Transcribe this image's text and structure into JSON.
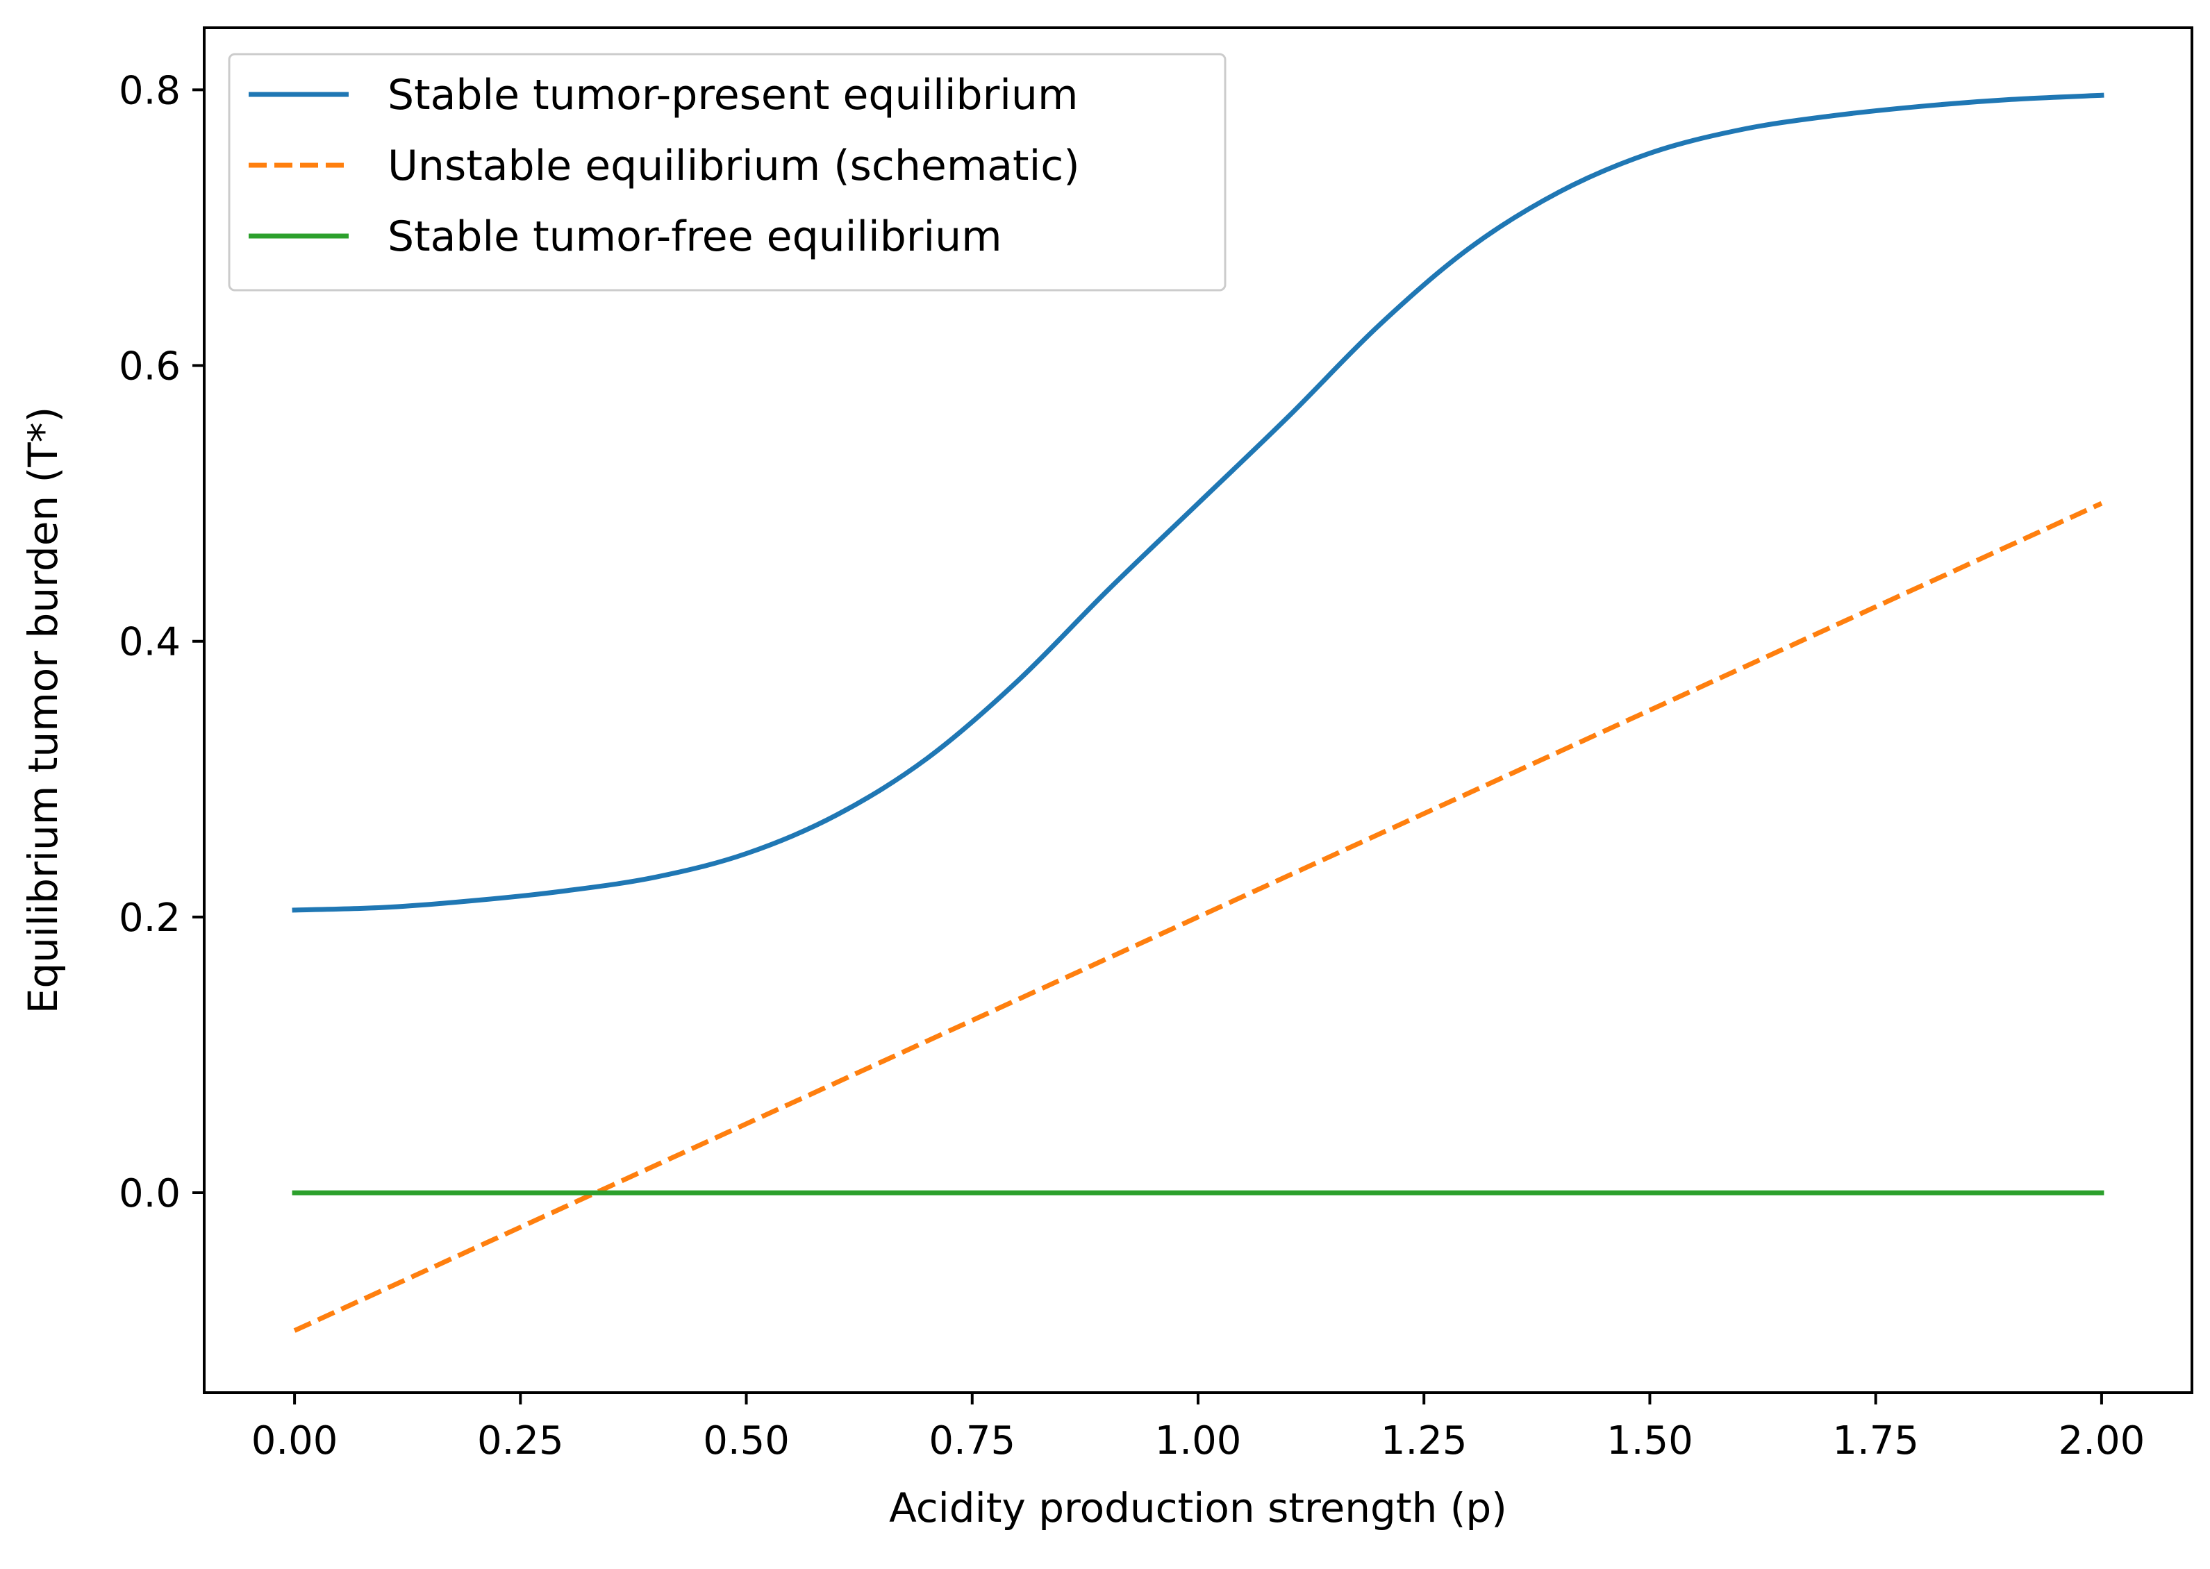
{
  "chart_data": {
    "type": "line",
    "title": "",
    "xlabel": "Acidity production strength (p)",
    "ylabel": "Equilibrium tumor burden (T*)",
    "xlim": [
      -0.1,
      2.1
    ],
    "ylim": [
      -0.145,
      0.845
    ],
    "x_ticks": [
      0.0,
      0.25,
      0.5,
      0.75,
      1.0,
      1.25,
      1.5,
      1.75,
      2.0
    ],
    "x_tick_labels": [
      "0.00",
      "0.25",
      "0.50",
      "0.75",
      "1.00",
      "1.25",
      "1.50",
      "1.75",
      "2.00"
    ],
    "y_ticks": [
      0.0,
      0.2,
      0.4,
      0.6,
      0.8
    ],
    "y_tick_labels": [
      "0.0",
      "0.2",
      "0.4",
      "0.6",
      "0.8"
    ],
    "grid": false,
    "legend_position": "top-left",
    "series": [
      {
        "name": "Stable tumor-present equilibrium",
        "color": "#1f77b4",
        "style": "solid",
        "x": [
          0.0,
          0.1,
          0.2,
          0.3,
          0.4,
          0.5,
          0.6,
          0.7,
          0.8,
          0.9,
          1.0,
          1.1,
          1.2,
          1.3,
          1.4,
          1.5,
          1.6,
          1.7,
          1.8,
          1.9,
          2.0
        ],
        "y": [
          0.205,
          0.207,
          0.212,
          0.219,
          0.229,
          0.246,
          0.274,
          0.315,
          0.371,
          0.437,
          0.5,
          0.563,
          0.629,
          0.685,
          0.726,
          0.754,
          0.771,
          0.781,
          0.788,
          0.793,
          0.796
        ]
      },
      {
        "name": "Unstable equilibrium (schematic)",
        "color": "#ff7f0e",
        "style": "dashed",
        "x": [
          0.0,
          2.0
        ],
        "y": [
          -0.1,
          0.5
        ]
      },
      {
        "name": "Stable tumor-free equilibrium",
        "color": "#2ca02c",
        "style": "solid",
        "x": [
          0.0,
          2.0
        ],
        "y": [
          0.0,
          0.0
        ]
      }
    ]
  }
}
